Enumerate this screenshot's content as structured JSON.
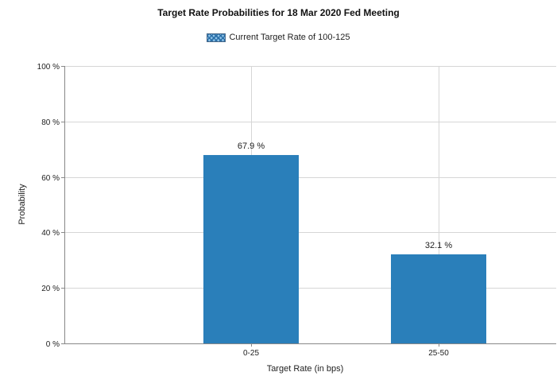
{
  "chart_data": {
    "type": "bar",
    "title": "Target Rate Probabilities for 18 Mar 2020 Fed Meeting",
    "legend": {
      "position": "top-center",
      "entries": [
        "Current Target Rate of 100-125"
      ]
    },
    "xlabel": "Target Rate (in bps)",
    "ylabel": "Probability",
    "categories": [
      "0-25",
      "25-50"
    ],
    "values": [
      67.9,
      32.1
    ],
    "data_labels": [
      "67.9 %",
      "32.1 %"
    ],
    "ylim": [
      0,
      100
    ],
    "yticks": [
      0,
      20,
      40,
      60,
      80,
      100
    ],
    "ytick_labels": [
      "0 %",
      "20 %",
      "40 %",
      "60 %",
      "80 %",
      "100 %"
    ],
    "grid": true,
    "bar_color": "#2a7fba"
  }
}
